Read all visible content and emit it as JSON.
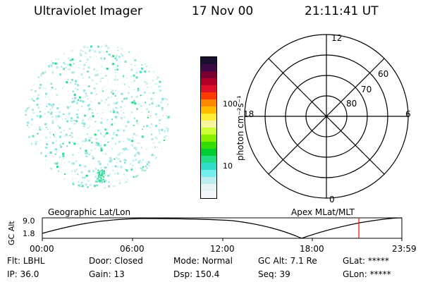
{
  "header": {
    "instrument": "Ultraviolet Imager",
    "date": "17 Nov 00",
    "time": "21:11:41 UT"
  },
  "colorbar": {
    "unit_label": "photon cm⁻²s⁻¹",
    "ticks": [
      "100",
      "10"
    ],
    "colors": [
      "#1a0f2e",
      "#3b0a45",
      "#7a0033",
      "#b0002a",
      "#e0102a",
      "#ff3a00",
      "#ff8800",
      "#ffbb00",
      "#ffee33",
      "#f5f5a0",
      "#ccff33",
      "#88ee00",
      "#33dd00",
      "#00cc33",
      "#22dd88",
      "#33ddcc",
      "#77eeee",
      "#bbeeee",
      "#e6f4f4",
      "#f4f8f8"
    ]
  },
  "polar_grid": {
    "labels": {
      "top": "12",
      "bottom": "0",
      "left": "18",
      "right": "6",
      "lat60": "60",
      "lat70": "70",
      "lat80": "80"
    }
  },
  "altitude_plot": {
    "ylabel": "GC Alt",
    "yticks": [
      "9.0",
      "1.8"
    ],
    "left_title": "Geographic Lat/Lon",
    "right_title": "Apex MLat/MLT",
    "xticks": [
      "00:00",
      "06:00",
      "12:00",
      "18:00",
      "23:59"
    ],
    "marker_color": "#ff0000"
  },
  "status": {
    "row1": [
      {
        "label": "Flt:",
        "value": "LBHL"
      },
      {
        "label": "Door:",
        "value": "Closed"
      },
      {
        "label": "Mode:",
        "value": "Normal"
      },
      {
        "label": "GC Alt:",
        "value": "7.1 Re"
      },
      {
        "label": "GLat:",
        "value": "*****"
      }
    ],
    "row2": [
      {
        "label": "IP:",
        "value": "36.0"
      },
      {
        "label": "Gain:",
        "value": "13"
      },
      {
        "label": "Dsp:",
        "value": "150.4"
      },
      {
        "label": "Seq:",
        "value": "39"
      },
      {
        "label": "GLon:",
        "value": "*****"
      }
    ]
  }
}
